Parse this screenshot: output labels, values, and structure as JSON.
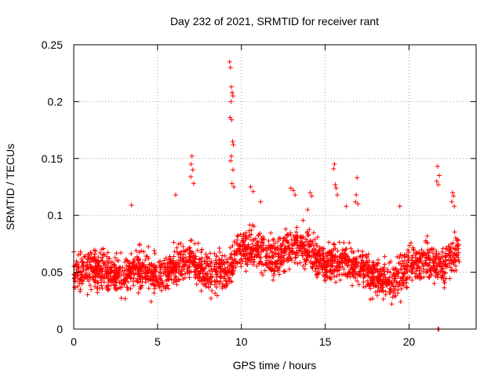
{
  "chart_data": {
    "type": "scatter",
    "title": "Day 232 of 2021, SRMTID for receiver rant",
    "xlabel": "GPS time / hours",
    "ylabel": "SRMTID / TECUs",
    "xlim": [
      0,
      24
    ],
    "ylim": [
      0,
      0.25
    ],
    "xticks": [
      0,
      5,
      10,
      15,
      20
    ],
    "yticks": [
      0,
      0.05,
      0.1,
      0.15,
      0.2,
      0.25
    ],
    "xtick_labels": [
      "0",
      "5",
      "10",
      "15",
      "20"
    ],
    "ytick_labels": [
      "0",
      "0.05",
      "0.1",
      "0.15",
      "0.2",
      "0.25"
    ],
    "grid": true,
    "marker": "+",
    "series": [
      {
        "name": "SRMTID",
        "color": "#ff0000",
        "baseline": [
          [
            0.0,
            0.05
          ],
          [
            1.0,
            0.052
          ],
          [
            2.0,
            0.05
          ],
          [
            3.0,
            0.045
          ],
          [
            3.5,
            0.055
          ],
          [
            4.0,
            0.052
          ],
          [
            5.0,
            0.046
          ],
          [
            6.0,
            0.055
          ],
          [
            7.0,
            0.06
          ],
          [
            8.0,
            0.05
          ],
          [
            9.0,
            0.05
          ],
          [
            10.0,
            0.07
          ],
          [
            11.0,
            0.07
          ],
          [
            12.0,
            0.06
          ],
          [
            13.0,
            0.075
          ],
          [
            14.0,
            0.07
          ],
          [
            15.0,
            0.055
          ],
          [
            16.0,
            0.06
          ],
          [
            17.0,
            0.055
          ],
          [
            18.0,
            0.045
          ],
          [
            19.0,
            0.04
          ],
          [
            20.0,
            0.055
          ],
          [
            21.0,
            0.06
          ],
          [
            22.0,
            0.055
          ],
          [
            23.0,
            0.07
          ]
        ],
        "scatter_spread": 0.03,
        "sample_count": 2300,
        "points": [
          [
            7.05,
            0.152
          ],
          [
            7.0,
            0.145
          ],
          [
            7.1,
            0.14
          ],
          [
            6.98,
            0.134
          ],
          [
            7.15,
            0.128
          ],
          [
            9.3,
            0.235
          ],
          [
            9.35,
            0.23
          ],
          [
            9.4,
            0.213
          ],
          [
            9.45,
            0.208
          ],
          [
            9.5,
            0.205
          ],
          [
            9.38,
            0.2
          ],
          [
            9.32,
            0.186
          ],
          [
            9.42,
            0.184
          ],
          [
            9.48,
            0.165
          ],
          [
            9.52,
            0.162
          ],
          [
            9.4,
            0.152
          ],
          [
            9.36,
            0.148
          ],
          [
            9.5,
            0.14
          ],
          [
            9.44,
            0.128
          ],
          [
            9.55,
            0.125
          ],
          [
            3.45,
            0.109
          ],
          [
            6.08,
            0.118
          ],
          [
            10.55,
            0.125
          ],
          [
            10.7,
            0.121
          ],
          [
            11.15,
            0.112
          ],
          [
            12.95,
            0.124
          ],
          [
            13.1,
            0.122
          ],
          [
            13.2,
            0.118
          ],
          [
            14.1,
            0.12
          ],
          [
            14.2,
            0.117
          ],
          [
            15.55,
            0.145
          ],
          [
            15.5,
            0.141
          ],
          [
            15.6,
            0.127
          ],
          [
            15.65,
            0.124
          ],
          [
            15.72,
            0.118
          ],
          [
            16.25,
            0.108
          ],
          [
            16.9,
            0.133
          ],
          [
            16.85,
            0.118
          ],
          [
            16.8,
            0.112
          ],
          [
            16.95,
            0.11
          ],
          [
            19.45,
            0.108
          ],
          [
            21.7,
            0.143
          ],
          [
            21.8,
            0.135
          ],
          [
            21.65,
            0.13
          ],
          [
            21.75,
            0.127
          ],
          [
            22.6,
            0.12
          ],
          [
            22.65,
            0.117
          ],
          [
            22.55,
            0.112
          ],
          [
            22.7,
            0.108
          ],
          [
            13.95,
            0.105
          ],
          [
            21.75,
            0.0
          ],
          [
            21.78,
            0.0
          ],
          [
            21.72,
            0.0
          ]
        ]
      }
    ]
  }
}
